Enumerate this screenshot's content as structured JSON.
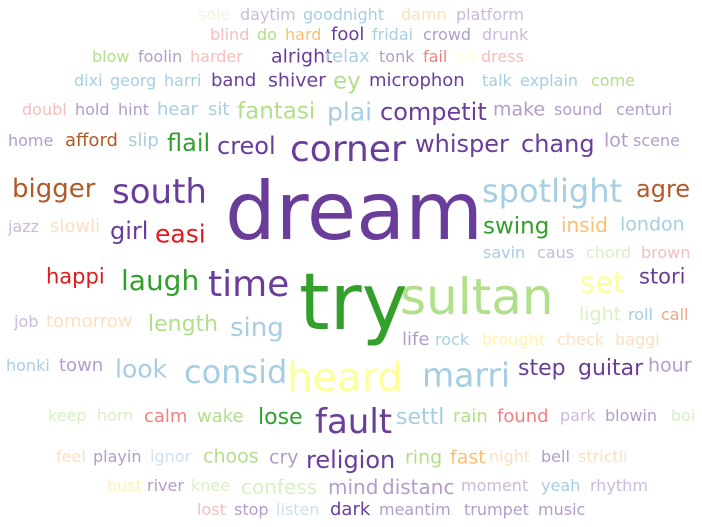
{
  "word_cloud": {
    "words": [
      {
        "text": "sole",
        "color": "#f0f4dd"
      },
      {
        "text": "daytim",
        "color": "#cbbadc"
      },
      {
        "text": "goodnight",
        "color": "#a6cee3"
      },
      {
        "text": "damn",
        "color": "#fddfbf"
      },
      {
        "text": "platform",
        "color": "#cbbadc"
      },
      {
        "text": "blind",
        "color": "#f7bdbd"
      },
      {
        "text": "do",
        "color": "#b2df8a"
      },
      {
        "text": "hard",
        "color": "#fdbf6f"
      },
      {
        "text": "fool",
        "color": "#6a3d9a"
      },
      {
        "text": "fridai",
        "color": "#a6cee3"
      },
      {
        "text": "crowd",
        "color": "#b39ccb"
      },
      {
        "text": "drunk",
        "color": "#cbbadc"
      },
      {
        "text": "blow",
        "color": "#b2df8a"
      },
      {
        "text": "foolin",
        "color": "#b39ccb"
      },
      {
        "text": "harder",
        "color": "#f7bdbd"
      },
      {
        "text": "alright",
        "color": "#6a3d9a"
      },
      {
        "text": "relax",
        "color": "#a6cee3"
      },
      {
        "text": "tonk",
        "color": "#b39ccb"
      },
      {
        "text": "fail",
        "color": "#f08080"
      },
      {
        "text": "sit",
        "color": "#ffffcc"
      },
      {
        "text": "dress",
        "color": "#f7bdbd"
      },
      {
        "text": "dixi",
        "color": "#a6cee3"
      },
      {
        "text": "georg",
        "color": "#a6cee3"
      },
      {
        "text": "harri",
        "color": "#a6cee3"
      },
      {
        "text": "band",
        "color": "#6a3d9a"
      },
      {
        "text": "shiver",
        "color": "#6a3d9a"
      },
      {
        "text": "ey",
        "color": "#b2df8a"
      },
      {
        "text": "microphon",
        "color": "#6a3d9a"
      },
      {
        "text": "talk",
        "color": "#a6cee3"
      },
      {
        "text": "explain",
        "color": "#a6cee3"
      },
      {
        "text": "come",
        "color": "#b2df8a"
      },
      {
        "text": "doubl",
        "color": "#f7bdbd"
      },
      {
        "text": "hold",
        "color": "#b39ccb"
      },
      {
        "text": "hint",
        "color": "#b39ccb"
      },
      {
        "text": "hear",
        "color": "#a6cee3"
      },
      {
        "text": "sit",
        "color": "#a6cee3"
      },
      {
        "text": "fantasi",
        "color": "#b2df8a"
      },
      {
        "text": "plai",
        "color": "#a6cee3"
      },
      {
        "text": "competit",
        "color": "#6a3d9a"
      },
      {
        "text": "make",
        "color": "#b39ccb"
      },
      {
        "text": "sound",
        "color": "#b39ccb"
      },
      {
        "text": "centuri",
        "color": "#b39ccb"
      },
      {
        "text": "home",
        "color": "#b39ccb"
      },
      {
        "text": "afford",
        "color": "#b15928"
      },
      {
        "text": "slip",
        "color": "#a6cee3"
      },
      {
        "text": "flail",
        "color": "#33a02c"
      },
      {
        "text": "creol",
        "color": "#6a3d9a"
      },
      {
        "text": "corner",
        "color": "#6a3d9a"
      },
      {
        "text": "whisper",
        "color": "#6a3d9a"
      },
      {
        "text": "chang",
        "color": "#6a3d9a"
      },
      {
        "text": "lot",
        "color": "#b39ccb"
      },
      {
        "text": "scene",
        "color": "#b39ccb"
      },
      {
        "text": "bigger",
        "color": "#b15928"
      },
      {
        "text": "south",
        "color": "#6a3d9a"
      },
      {
        "text": "dream",
        "color": "#6a3d9a"
      },
      {
        "text": "spotlight",
        "color": "#a6cee3"
      },
      {
        "text": "agre",
        "color": "#b15928"
      },
      {
        "text": "jazz",
        "color": "#cbbadc"
      },
      {
        "text": "slowli",
        "color": "#fddfbf"
      },
      {
        "text": "girl",
        "color": "#6a3d9a"
      },
      {
        "text": "easi",
        "color": "#e31a1c"
      },
      {
        "text": "swing",
        "color": "#33a02c"
      },
      {
        "text": "insid",
        "color": "#fdbf6f"
      },
      {
        "text": "london",
        "color": "#a6cee3"
      },
      {
        "text": "savin",
        "color": "#a6cee3"
      },
      {
        "text": "caus",
        "color": "#cbbadc"
      },
      {
        "text": "chord",
        "color": "#d9f0c4"
      },
      {
        "text": "brown",
        "color": "#f7bdbd"
      },
      {
        "text": "happi",
        "color": "#e31a1c"
      },
      {
        "text": "laugh",
        "color": "#33a02c"
      },
      {
        "text": "time",
        "color": "#6a3d9a"
      },
      {
        "text": "try",
        "color": "#33a02c"
      },
      {
        "text": "sultan",
        "color": "#b2df8a"
      },
      {
        "text": "set",
        "color": "#ffff99"
      },
      {
        "text": "stori",
        "color": "#6a3d9a"
      },
      {
        "text": "job",
        "color": "#cbbadc"
      },
      {
        "text": "tomorrow",
        "color": "#fddfbf"
      },
      {
        "text": "length",
        "color": "#b2df8a"
      },
      {
        "text": "sing",
        "color": "#a6cee3"
      },
      {
        "text": "light",
        "color": "#d9f0c4"
      },
      {
        "text": "roll",
        "color": "#a6cee3"
      },
      {
        "text": "call",
        "color": "#f4a582"
      },
      {
        "text": "life",
        "color": "#b39ccb"
      },
      {
        "text": "rock",
        "color": "#a6cee3"
      },
      {
        "text": "brought",
        "color": "#fff2b3"
      },
      {
        "text": "check",
        "color": "#fddfbf"
      },
      {
        "text": "baggi",
        "color": "#fddfbf"
      },
      {
        "text": "honki",
        "color": "#a6cee3"
      },
      {
        "text": "town",
        "color": "#b39ccb"
      },
      {
        "text": "look",
        "color": "#a6cee3"
      },
      {
        "text": "consid",
        "color": "#a6cee3"
      },
      {
        "text": "heard",
        "color": "#ffff99"
      },
      {
        "text": "marri",
        "color": "#a6cee3"
      },
      {
        "text": "step",
        "color": "#6a3d9a"
      },
      {
        "text": "guitar",
        "color": "#6a3d9a"
      },
      {
        "text": "hour",
        "color": "#b39ccb"
      },
      {
        "text": "keep",
        "color": "#d9f0c4"
      },
      {
        "text": "horn",
        "color": "#d9f0c4"
      },
      {
        "text": "calm",
        "color": "#f08080"
      },
      {
        "text": "wake",
        "color": "#b2df8a"
      },
      {
        "text": "lose",
        "color": "#33a02c"
      },
      {
        "text": "fault",
        "color": "#6a3d9a"
      },
      {
        "text": "settl",
        "color": "#a6cee3"
      },
      {
        "text": "rain",
        "color": "#b2df8a"
      },
      {
        "text": "found",
        "color": "#f08080"
      },
      {
        "text": "park",
        "color": "#cbbadc"
      },
      {
        "text": "blowin",
        "color": "#b39ccb"
      },
      {
        "text": "boi",
        "color": "#d9f0c4"
      },
      {
        "text": "feel",
        "color": "#fddfbf"
      },
      {
        "text": "playin",
        "color": "#b39ccb"
      },
      {
        "text": "ignor",
        "color": "#cbdff0"
      },
      {
        "text": "choos",
        "color": "#b2df8a"
      },
      {
        "text": "cry",
        "color": "#b39ccb"
      },
      {
        "text": "religion",
        "color": "#6a3d9a"
      },
      {
        "text": "ring",
        "color": "#b2df8a"
      },
      {
        "text": "fast",
        "color": "#fdbf6f"
      },
      {
        "text": "night",
        "color": "#fddfbf"
      },
      {
        "text": "bell",
        "color": "#b39ccb"
      },
      {
        "text": "strictli",
        "color": "#fddfbf"
      },
      {
        "text": "bust",
        "color": "#fff2b3"
      },
      {
        "text": "river",
        "color": "#b39ccb"
      },
      {
        "text": "knee",
        "color": "#d9f0c4"
      },
      {
        "text": "confess",
        "color": "#d9f0c4"
      },
      {
        "text": "mind",
        "color": "#b39ccb"
      },
      {
        "text": "distanc",
        "color": "#b39ccb"
      },
      {
        "text": "moment",
        "color": "#cbbadc"
      },
      {
        "text": "yeah",
        "color": "#a6cee3"
      },
      {
        "text": "rhythm",
        "color": "#cbbadc"
      },
      {
        "text": "lost",
        "color": "#f7bdbd"
      },
      {
        "text": "stop",
        "color": "#b39ccb"
      },
      {
        "text": "listen",
        "color": "#cbdff0"
      },
      {
        "text": "dark",
        "color": "#6a3d9a"
      },
      {
        "text": "meantim",
        "color": "#b39ccb"
      },
      {
        "text": "trumpet",
        "color": "#b39ccb"
      },
      {
        "text": "music",
        "color": "#b39ccb"
      }
    ]
  }
}
